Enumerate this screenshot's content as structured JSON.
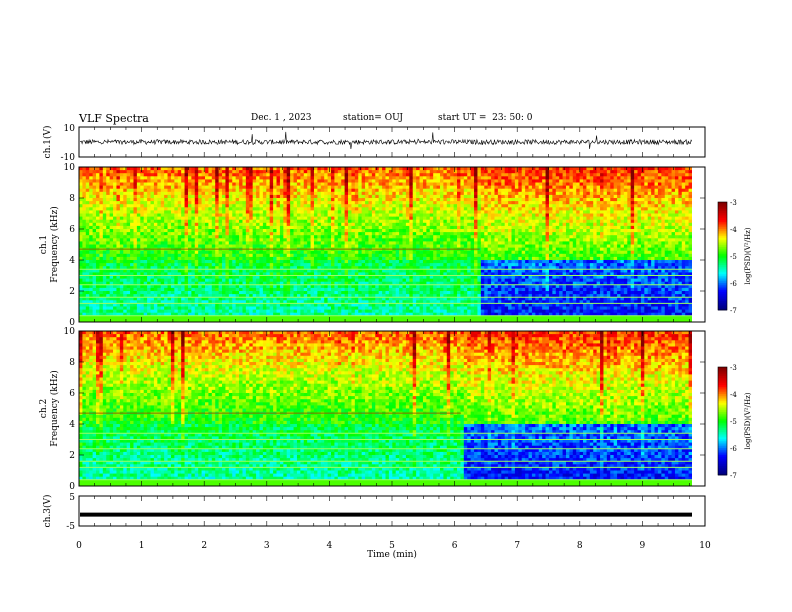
{
  "header": {
    "title": "VLF Spectra",
    "date": "Dec. 1 , 2023",
    "station": "station= OUJ",
    "start_ut": "start UT =  23: 50: 0"
  },
  "chart_data": [
    {
      "type": "line",
      "panel": "ch1_waveform",
      "ylabel": "ch.1(V)",
      "yticks": [
        "10",
        "-10"
      ],
      "ylim": [
        -10,
        10
      ],
      "description_values": "noisy waveform centred near 0 V, amplitude about ±2 V with occasional spikes"
    },
    {
      "type": "heatmap",
      "panel": "ch1_spectrogram",
      "ylabel": "ch.1 Frequency (kHz)",
      "ylim": [
        0,
        10
      ],
      "yticks": [
        "0",
        "2",
        "4",
        "6",
        "8",
        "10"
      ],
      "colorbar": {
        "label": "log(PSD)(V²/Hz)",
        "ticks": [
          "-3",
          "-4",
          "-5",
          "-6",
          "-7"
        ],
        "range": [
          -7,
          -3
        ]
      },
      "regime_change_min": 6.4
    },
    {
      "type": "heatmap",
      "panel": "ch2_spectrogram",
      "ylabel": "ch.2 Frequency (kHz)",
      "ylim": [
        0,
        10
      ],
      "yticks": [
        "0",
        "2",
        "4",
        "6",
        "8",
        "10"
      ],
      "colorbar": {
        "label": "log(PSD)(V²/Hz)",
        "ticks": [
          "-3",
          "-4",
          "-5",
          "-6",
          "-7"
        ],
        "range": [
          -7,
          -3
        ]
      },
      "regime_change_min": 6.1
    },
    {
      "type": "line",
      "panel": "ch3_waveform",
      "ylabel": "ch.3(V)",
      "yticks": [
        "5",
        "-5"
      ],
      "ylim": [
        -5,
        5
      ],
      "level": -1.2
    }
  ],
  "x_axis": {
    "label": "Time (min)",
    "ticks": [
      "0",
      "1",
      "2",
      "3",
      "4",
      "5",
      "6",
      "7",
      "8",
      "9",
      "10"
    ],
    "range": [
      0,
      10
    ]
  },
  "colors": {
    "colormap": [
      "#00007f",
      "#0000ff",
      "#00ffff",
      "#00ff00",
      "#ffff00",
      "#ff0000",
      "#7f0000"
    ]
  }
}
